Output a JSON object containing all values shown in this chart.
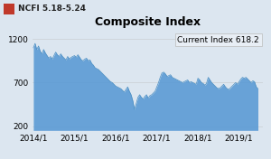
{
  "title": "Composite Index",
  "label_text": "NCFI 5.18-5.24",
  "label_box_color": "#c0392b",
  "annotation_text": "Current Index 618.2",
  "annotation_box_color": "#dce6f0",
  "background_color": "#dce6f0",
  "plot_bg_color": "#dce6f0",
  "fill_color": "#5b9bd5",
  "fill_alpha": 0.9,
  "line_color": "#4a8ec2",
  "yticks": [
    200,
    700,
    1200
  ],
  "xtick_labels": [
    "2014/1",
    "2015/1",
    "2016/1",
    "2017/1",
    "2018/1",
    "2019/1"
  ],
  "ylim": [
    150,
    1320
  ],
  "grid_color": "#bbbbbb",
  "title_fontsize": 9,
  "tick_fontsize": 6.5,
  "series": [
    [
      2014.0,
      1100
    ],
    [
      2014.042,
      1150
    ],
    [
      2014.083,
      1080
    ],
    [
      2014.125,
      1120
    ],
    [
      2014.167,
      1060
    ],
    [
      2014.208,
      1030
    ],
    [
      2014.25,
      1080
    ],
    [
      2014.292,
      1040
    ],
    [
      2014.333,
      1010
    ],
    [
      2014.375,
      980
    ],
    [
      2014.417,
      1000
    ],
    [
      2014.458,
      970
    ],
    [
      2014.5,
      1010
    ],
    [
      2014.542,
      1050
    ],
    [
      2014.583,
      1020
    ],
    [
      2014.625,
      1000
    ],
    [
      2014.667,
      1030
    ],
    [
      2014.708,
      1000
    ],
    [
      2014.75,
      980
    ],
    [
      2014.792,
      960
    ],
    [
      2014.833,
      1000
    ],
    [
      2014.875,
      970
    ],
    [
      2014.917,
      990
    ],
    [
      2014.958,
      1000
    ],
    [
      2015.0,
      1010
    ],
    [
      2015.042,
      990
    ],
    [
      2015.083,
      1020
    ],
    [
      2015.125,
      990
    ],
    [
      2015.167,
      960
    ],
    [
      2015.208,
      950
    ],
    [
      2015.25,
      970
    ],
    [
      2015.292,
      980
    ],
    [
      2015.333,
      950
    ],
    [
      2015.375,
      960
    ],
    [
      2015.417,
      920
    ],
    [
      2015.458,
      900
    ],
    [
      2015.5,
      870
    ],
    [
      2015.542,
      860
    ],
    [
      2015.583,
      850
    ],
    [
      2015.625,
      830
    ],
    [
      2015.667,
      810
    ],
    [
      2015.708,
      790
    ],
    [
      2015.75,
      770
    ],
    [
      2015.792,
      750
    ],
    [
      2015.833,
      730
    ],
    [
      2015.875,
      710
    ],
    [
      2015.917,
      700
    ],
    [
      2015.958,
      680
    ],
    [
      2016.0,
      660
    ],
    [
      2016.042,
      650
    ],
    [
      2016.083,
      640
    ],
    [
      2016.125,
      630
    ],
    [
      2016.167,
      610
    ],
    [
      2016.208,
      590
    ],
    [
      2016.25,
      620
    ],
    [
      2016.292,
      650
    ],
    [
      2016.333,
      600
    ],
    [
      2016.375,
      560
    ],
    [
      2016.417,
      490
    ],
    [
      2016.458,
      390
    ],
    [
      2016.5,
      460
    ],
    [
      2016.542,
      530
    ],
    [
      2016.583,
      560
    ],
    [
      2016.625,
      530
    ],
    [
      2016.667,
      510
    ],
    [
      2016.708,
      540
    ],
    [
      2016.75,
      560
    ],
    [
      2016.792,
      520
    ],
    [
      2016.833,
      550
    ],
    [
      2016.875,
      560
    ],
    [
      2016.917,
      580
    ],
    [
      2016.958,
      600
    ],
    [
      2017.0,
      650
    ],
    [
      2017.042,
      700
    ],
    [
      2017.083,
      760
    ],
    [
      2017.125,
      810
    ],
    [
      2017.167,
      820
    ],
    [
      2017.208,
      800
    ],
    [
      2017.25,
      770
    ],
    [
      2017.292,
      780
    ],
    [
      2017.333,
      790
    ],
    [
      2017.375,
      760
    ],
    [
      2017.417,
      750
    ],
    [
      2017.458,
      740
    ],
    [
      2017.5,
      730
    ],
    [
      2017.542,
      720
    ],
    [
      2017.583,
      710
    ],
    [
      2017.625,
      700
    ],
    [
      2017.667,
      710
    ],
    [
      2017.708,
      720
    ],
    [
      2017.75,
      730
    ],
    [
      2017.792,
      700
    ],
    [
      2017.833,
      710
    ],
    [
      2017.875,
      700
    ],
    [
      2017.917,
      690
    ],
    [
      2017.958,
      680
    ],
    [
      2018.0,
      750
    ],
    [
      2018.042,
      730
    ],
    [
      2018.083,
      700
    ],
    [
      2018.125,
      690
    ],
    [
      2018.167,
      670
    ],
    [
      2018.208,
      690
    ],
    [
      2018.25,
      760
    ],
    [
      2018.292,
      730
    ],
    [
      2018.333,
      700
    ],
    [
      2018.375,
      680
    ],
    [
      2018.417,
      660
    ],
    [
      2018.458,
      640
    ],
    [
      2018.5,
      630
    ],
    [
      2018.542,
      640
    ],
    [
      2018.583,
      660
    ],
    [
      2018.625,
      680
    ],
    [
      2018.667,
      650
    ],
    [
      2018.708,
      630
    ],
    [
      2018.75,
      620
    ],
    [
      2018.792,
      640
    ],
    [
      2018.833,
      660
    ],
    [
      2018.875,
      680
    ],
    [
      2018.917,
      700
    ],
    [
      2018.958,
      680
    ],
    [
      2019.0,
      710
    ],
    [
      2019.042,
      740
    ],
    [
      2019.083,
      760
    ],
    [
      2019.125,
      750
    ],
    [
      2019.167,
      760
    ],
    [
      2019.208,
      740
    ],
    [
      2019.25,
      720
    ],
    [
      2019.292,
      700
    ],
    [
      2019.333,
      720
    ],
    [
      2019.375,
      710
    ],
    [
      2019.417,
      650
    ],
    [
      2019.458,
      630
    ]
  ]
}
